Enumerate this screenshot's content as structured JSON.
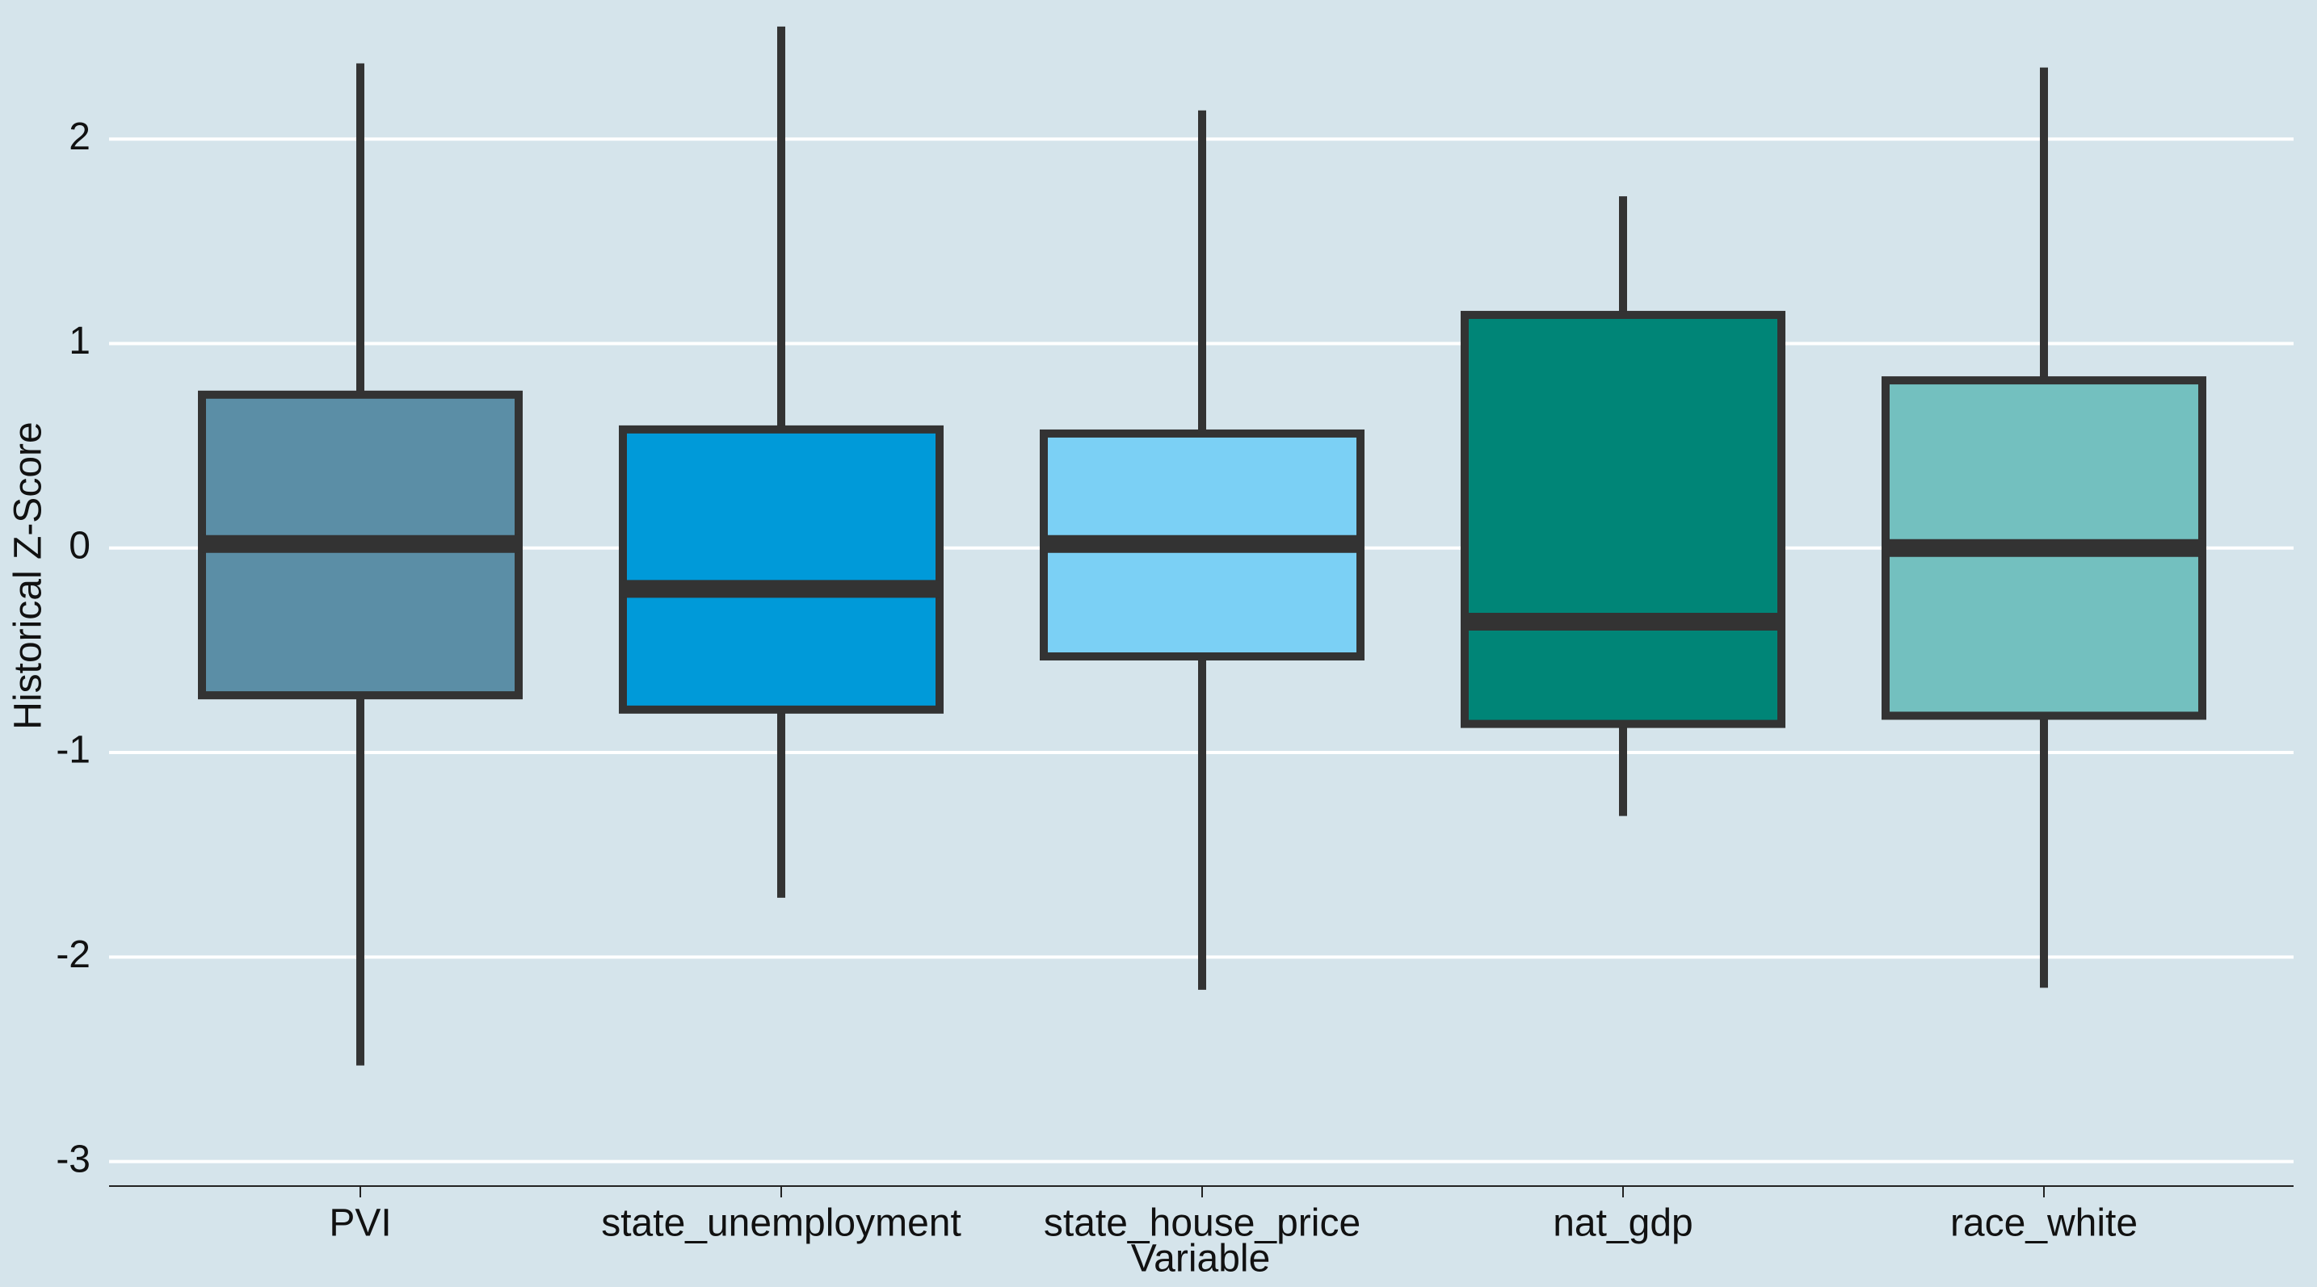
{
  "chart_data": {
    "type": "box",
    "x_label": "Variable",
    "y_label": "Historical Z-Score",
    "categories": [
      "PVI",
      "state_unemployment",
      "state_house_price",
      "nat_gdp",
      "race_white"
    ],
    "colors": [
      "#5b8ea6",
      "#009ad9",
      "#7bd0f5",
      "#008577",
      "#73c0bf"
    ],
    "min": [
      -2.53,
      -1.71,
      -2.16,
      -1.31,
      -2.15
    ],
    "q1": [
      -0.72,
      -0.79,
      -0.53,
      -0.86,
      -0.82
    ],
    "median": [
      0.02,
      -0.2,
      0.02,
      -0.36,
      0.0
    ],
    "q3": [
      0.75,
      0.58,
      0.56,
      1.14,
      0.82
    ],
    "max": [
      2.37,
      2.55,
      2.14,
      1.72,
      2.35
    ],
    "ylim": [
      -3.12,
      2.68
    ],
    "yticks": [
      -3,
      -2,
      -1,
      0,
      1,
      2
    ],
    "grid": true
  }
}
